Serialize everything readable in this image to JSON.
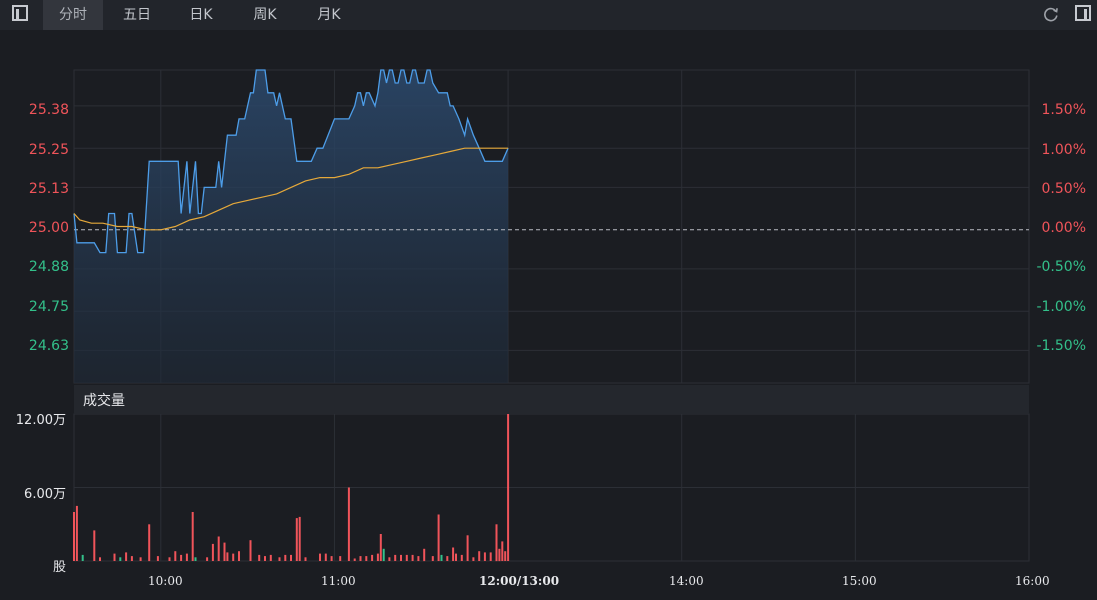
{
  "toolbar": {
    "tabs": [
      {
        "label": "分时",
        "active": true
      },
      {
        "label": "五日",
        "active": false
      },
      {
        "label": "日K",
        "active": false
      },
      {
        "label": "周K",
        "active": false
      },
      {
        "label": "月K",
        "active": false
      }
    ],
    "left_icon": "panel-toggle-icon",
    "refresh_icon": "refresh-icon",
    "right_icon": "panel-toggle-icon"
  },
  "colors": {
    "price_line": "#4d9de8",
    "avg_line": "#e6a93a",
    "up": "#f0545a",
    "down": "#33c08a",
    "background": "#1b1d22"
  },
  "chart_data": [
    {
      "type": "line",
      "title": "",
      "x_ticks": [
        "10:00",
        "11:00",
        "12:00/13:00",
        "14:00",
        "15:00",
        "16:00"
      ],
      "x_range": [
        "09:30",
        "16:00"
      ],
      "reference_price": 25.0,
      "y_ticks_left": [
        "25.38",
        "25.25",
        "25.13",
        "25.00",
        "24.88",
        "24.75",
        "24.63"
      ],
      "y_ticks_right": [
        "1.50%",
        "1.00%",
        "0.50%",
        "0.00%",
        "-0.50%",
        "-1.00%",
        "-1.50%"
      ],
      "ylim": [
        24.53,
        25.49
      ],
      "series": [
        {
          "name": "",
          "style": "price",
          "x": [
            "09:30",
            "09:31",
            "09:37",
            "09:39",
            "09:41",
            "09:42",
            "09:44",
            "09:45",
            "09:48",
            "09:49",
            "09:50",
            "09:52",
            "09:53",
            "09:54",
            "09:56",
            "09:57",
            "09:58",
            "09:59",
            "10:00",
            "10:01",
            "10:02",
            "10:03",
            "10:04",
            "10:05",
            "10:06",
            "10:07",
            "10:09",
            "10:10",
            "10:12",
            "10:13",
            "10:14",
            "10:15",
            "10:16",
            "10:18",
            "10:19",
            "10:20",
            "10:21",
            "10:22",
            "10:23",
            "10:24",
            "10:25",
            "10:26",
            "10:27",
            "10:28",
            "10:29",
            "10:30",
            "10:31",
            "10:32",
            "10:33",
            "10:34",
            "10:36",
            "10:37",
            "10:39",
            "10:40",
            "10:41",
            "10:43",
            "10:45",
            "10:47",
            "10:50",
            "10:52",
            "10:54",
            "10:56",
            "11:00",
            "11:05",
            "11:07",
            "11:08",
            "11:09",
            "11:10",
            "11:11",
            "11:12",
            "11:14",
            "11:15",
            "11:16",
            "11:17",
            "11:18",
            "11:19",
            "11:20",
            "11:21",
            "11:22",
            "11:23",
            "11:24",
            "11:25",
            "11:26",
            "11:27",
            "11:28",
            "11:29",
            "11:30",
            "11:31",
            "11:32",
            "11:33",
            "11:34",
            "11:36",
            "11:37",
            "11:38",
            "11:39",
            "11:40",
            "11:41",
            "11:43",
            "11:45",
            "11:46",
            "11:48",
            "11:50",
            "11:52",
            "11:54",
            "11:56",
            "11:58",
            "12:00"
          ],
          "values": [
            25.05,
            24.96,
            24.96,
            24.93,
            24.93,
            25.05,
            25.05,
            24.93,
            24.93,
            25.05,
            25.05,
            24.93,
            24.93,
            24.93,
            25.21,
            25.21,
            25.21,
            25.21,
            25.21,
            25.21,
            25.21,
            25.21,
            25.21,
            25.21,
            25.21,
            25.05,
            25.21,
            25.05,
            25.21,
            25.05,
            25.05,
            25.13,
            25.13,
            25.13,
            25.13,
            25.21,
            25.13,
            25.21,
            25.29,
            25.29,
            25.29,
            25.29,
            25.34,
            25.34,
            25.34,
            25.38,
            25.42,
            25.42,
            25.49,
            25.49,
            25.49,
            25.42,
            25.42,
            25.38,
            25.42,
            25.34,
            25.34,
            25.21,
            25.21,
            25.21,
            25.25,
            25.25,
            25.34,
            25.34,
            25.38,
            25.42,
            25.42,
            25.38,
            25.42,
            25.42,
            25.38,
            25.42,
            25.49,
            25.49,
            25.45,
            25.49,
            25.49,
            25.45,
            25.45,
            25.49,
            25.49,
            25.45,
            25.45,
            25.49,
            25.49,
            25.45,
            25.45,
            25.45,
            25.49,
            25.49,
            25.45,
            25.42,
            25.42,
            25.42,
            25.42,
            25.38,
            25.38,
            25.34,
            25.29,
            25.34,
            25.29,
            25.25,
            25.21,
            25.21,
            25.21,
            25.21,
            25.25
          ]
        },
        {
          "name": "",
          "style": "average",
          "x": [
            "09:30",
            "09:32",
            "09:36",
            "09:40",
            "09:45",
            "09:50",
            "09:55",
            "10:00",
            "10:05",
            "10:10",
            "10:15",
            "10:20",
            "10:25",
            "10:30",
            "10:35",
            "10:40",
            "10:45",
            "10:50",
            "10:55",
            "11:00",
            "11:05",
            "11:10",
            "11:15",
            "11:20",
            "11:25",
            "11:30",
            "11:35",
            "11:40",
            "11:45",
            "11:50",
            "11:55",
            "12:00"
          ],
          "values": [
            25.05,
            25.03,
            25.02,
            25.02,
            25.01,
            25.01,
            25.0,
            25.0,
            25.01,
            25.03,
            25.04,
            25.06,
            25.08,
            25.09,
            25.1,
            25.11,
            25.13,
            25.15,
            25.16,
            25.16,
            25.17,
            25.19,
            25.19,
            25.2,
            25.21,
            25.22,
            25.23,
            25.24,
            25.25,
            25.25,
            25.25,
            25.25
          ]
        }
      ]
    },
    {
      "type": "bar",
      "title": "成交量",
      "y_ticks": [
        "12.00万",
        "6.00万"
      ],
      "y_unit": "股",
      "ylim": [
        0,
        120000
      ],
      "bars": [
        {
          "t": "09:30",
          "v": 40000,
          "up": true
        },
        {
          "t": "09:31",
          "v": 45000,
          "up": true
        },
        {
          "t": "09:33",
          "v": 5000,
          "up": false
        },
        {
          "t": "09:37",
          "v": 25000,
          "up": true
        },
        {
          "t": "09:39",
          "v": 3000,
          "up": true
        },
        {
          "t": "09:44",
          "v": 6000,
          "up": true
        },
        {
          "t": "09:46",
          "v": 3000,
          "up": false
        },
        {
          "t": "09:48",
          "v": 7000,
          "up": true
        },
        {
          "t": "09:50",
          "v": 4000,
          "up": true
        },
        {
          "t": "09:53",
          "v": 3000,
          "up": true
        },
        {
          "t": "09:56",
          "v": 30000,
          "up": true
        },
        {
          "t": "09:59",
          "v": 4000,
          "up": true
        },
        {
          "t": "10:03",
          "v": 3000,
          "up": true
        },
        {
          "t": "10:05",
          "v": 8000,
          "up": true
        },
        {
          "t": "10:07",
          "v": 5000,
          "up": true
        },
        {
          "t": "10:09",
          "v": 6000,
          "up": true
        },
        {
          "t": "10:11",
          "v": 40000,
          "up": true
        },
        {
          "t": "10:12",
          "v": 3000,
          "up": false
        },
        {
          "t": "10:16",
          "v": 3000,
          "up": true
        },
        {
          "t": "10:18",
          "v": 14000,
          "up": true
        },
        {
          "t": "10:20",
          "v": 20000,
          "up": true
        },
        {
          "t": "10:22",
          "v": 15000,
          "up": true
        },
        {
          "t": "10:23",
          "v": 7000,
          "up": true
        },
        {
          "t": "10:25",
          "v": 6000,
          "up": true
        },
        {
          "t": "10:27",
          "v": 8000,
          "up": true
        },
        {
          "t": "10:31",
          "v": 17000,
          "up": true
        },
        {
          "t": "10:34",
          "v": 5000,
          "up": true
        },
        {
          "t": "10:36",
          "v": 4000,
          "up": true
        },
        {
          "t": "10:38",
          "v": 5000,
          "up": true
        },
        {
          "t": "10:41",
          "v": 3000,
          "up": true
        },
        {
          "t": "10:43",
          "v": 5000,
          "up": true
        },
        {
          "t": "10:45",
          "v": 5000,
          "up": true
        },
        {
          "t": "10:47",
          "v": 35000,
          "up": true
        },
        {
          "t": "10:48",
          "v": 36000,
          "up": true
        },
        {
          "t": "10:50",
          "v": 3000,
          "up": true
        },
        {
          "t": "10:55",
          "v": 6000,
          "up": true
        },
        {
          "t": "10:57",
          "v": 6000,
          "up": true
        },
        {
          "t": "10:59",
          "v": 4000,
          "up": true
        },
        {
          "t": "11:02",
          "v": 4000,
          "up": true
        },
        {
          "t": "11:05",
          "v": 60000,
          "up": true
        },
        {
          "t": "11:07",
          "v": 2000,
          "up": true
        },
        {
          "t": "11:09",
          "v": 4000,
          "up": true
        },
        {
          "t": "11:11",
          "v": 4000,
          "up": true
        },
        {
          "t": "11:13",
          "v": 5000,
          "up": true
        },
        {
          "t": "11:15",
          "v": 6000,
          "up": true
        },
        {
          "t": "11:16",
          "v": 22000,
          "up": true
        },
        {
          "t": "11:17",
          "v": 10000,
          "up": false
        },
        {
          "t": "11:19",
          "v": 3000,
          "up": true
        },
        {
          "t": "11:21",
          "v": 5000,
          "up": true
        },
        {
          "t": "11:23",
          "v": 5000,
          "up": true
        },
        {
          "t": "11:25",
          "v": 5000,
          "up": true
        },
        {
          "t": "11:27",
          "v": 5000,
          "up": true
        },
        {
          "t": "11:29",
          "v": 4000,
          "up": true
        },
        {
          "t": "11:31",
          "v": 10000,
          "up": true
        },
        {
          "t": "11:34",
          "v": 4000,
          "up": true
        },
        {
          "t": "11:36",
          "v": 38000,
          "up": true
        },
        {
          "t": "11:37",
          "v": 5000,
          "up": false
        },
        {
          "t": "11:39",
          "v": 4000,
          "up": true
        },
        {
          "t": "11:41",
          "v": 11000,
          "up": true
        },
        {
          "t": "11:42",
          "v": 6000,
          "up": true
        },
        {
          "t": "11:44",
          "v": 5000,
          "up": true
        },
        {
          "t": "11:46",
          "v": 21000,
          "up": true
        },
        {
          "t": "11:48",
          "v": 3000,
          "up": true
        },
        {
          "t": "11:50",
          "v": 8000,
          "up": true
        },
        {
          "t": "11:52",
          "v": 7000,
          "up": true
        },
        {
          "t": "11:54",
          "v": 7000,
          "up": true
        },
        {
          "t": "11:56",
          "v": 30000,
          "up": true
        },
        {
          "t": "11:57",
          "v": 10000,
          "up": true
        },
        {
          "t": "11:58",
          "v": 16000,
          "up": true
        },
        {
          "t": "11:59",
          "v": 8000,
          "up": true
        },
        {
          "t": "12:00",
          "v": 120000,
          "up": true
        }
      ]
    }
  ]
}
